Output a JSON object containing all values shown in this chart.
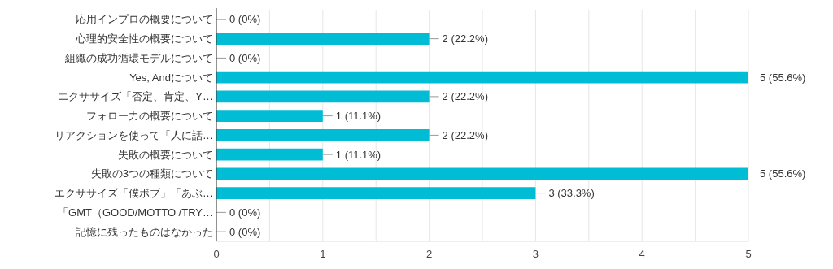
{
  "chart_data": {
    "type": "bar",
    "orientation": "horizontal",
    "categories": [
      "応用インプロの概要について",
      "心理的安全性の概要について",
      "組織の成功循環モデルについて",
      "Yes, Andについて",
      "エクササイズ「否定、肯定、Y…",
      "フォロー力の概要について",
      "リアクションを使って「人に話…",
      "失敗の概要について",
      "失敗の3つの種類について",
      "エクササイズ「僕ボブ」「あぶ…",
      "「GMT（GOOD/MOTTO /TRY…",
      "記憶に残ったものはなかった"
    ],
    "values": [
      0,
      2,
      0,
      5,
      2,
      1,
      2,
      1,
      5,
      3,
      0,
      0
    ],
    "value_labels": [
      "0 (0%)",
      "2 (22.2%)",
      "0 (0%)",
      "5 (55.6%)",
      "2 (22.2%)",
      "1 (11.1%)",
      "2 (22.2%)",
      "1 (11.1%)",
      "5 (55.6%)",
      "3 (33.3%)",
      "0 (0%)",
      "0 (0%)"
    ],
    "color": "#00bcd4",
    "xlim": [
      0,
      5
    ],
    "xticks": [
      0,
      {
        "value": 0.5,
        "label": null
      },
      1,
      {
        "value": 1.5,
        "label": null
      },
      2,
      {
        "value": 2.5,
        "label": null
      },
      3,
      {
        "value": 3.5,
        "label": null
      },
      4,
      {
        "value": 4.5,
        "label": null
      },
      5
    ],
    "grid": "x"
  }
}
